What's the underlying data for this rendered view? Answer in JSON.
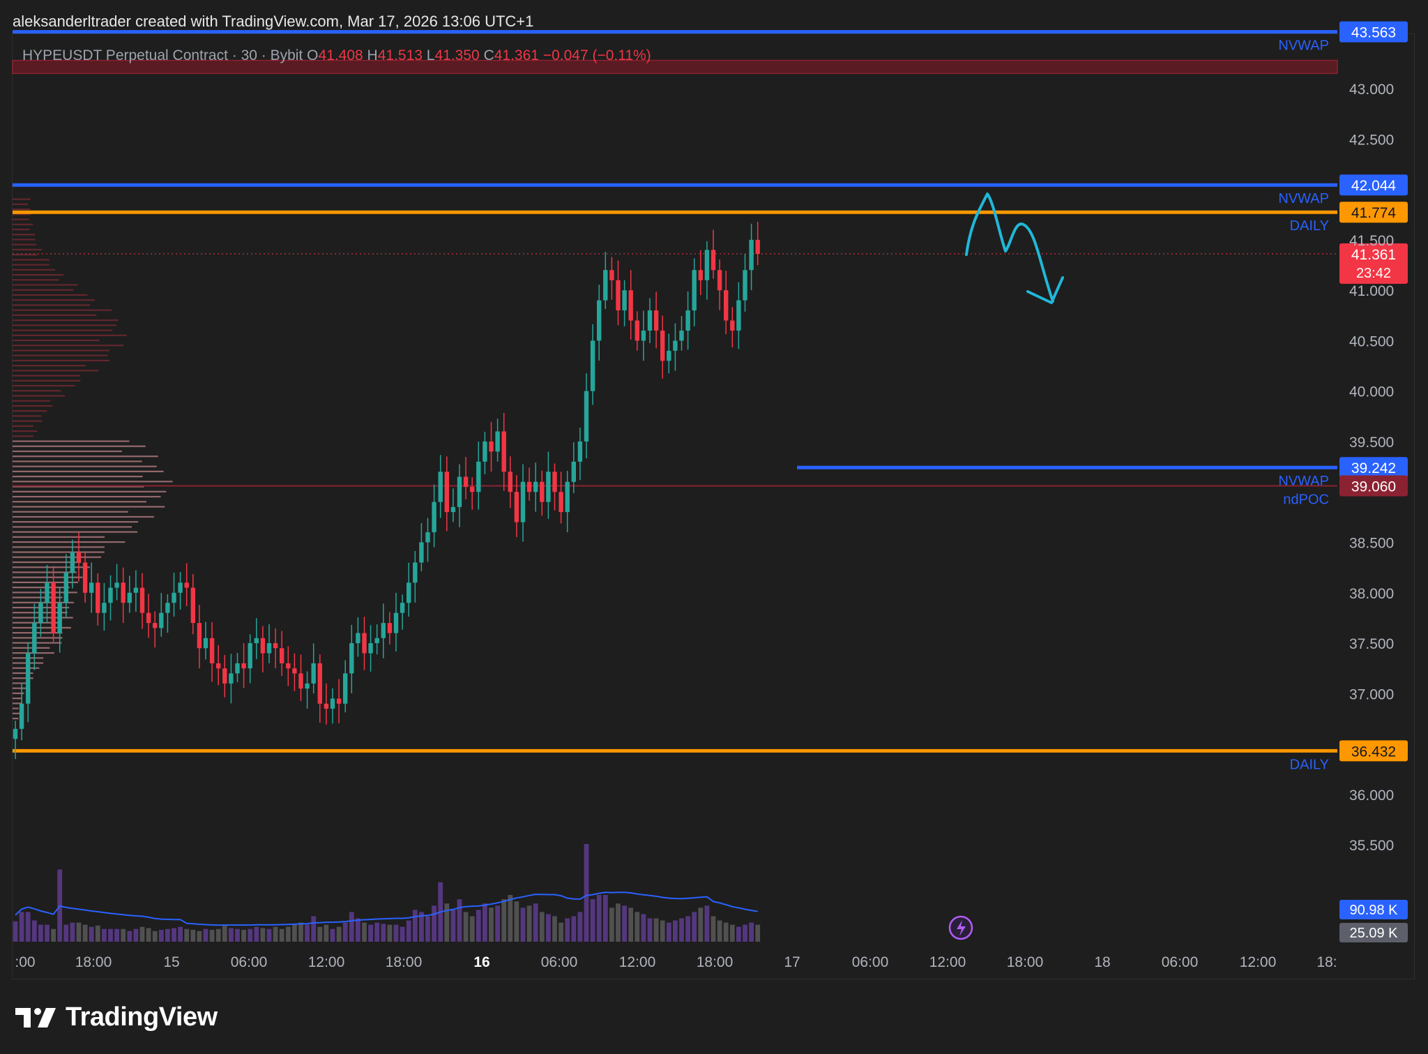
{
  "header": {
    "attribution": "aleksanderltrader created with TradingView.com, Mar 17, 2026 13:06 UTC+1"
  },
  "legend": {
    "symbol": "HYPEUSDT Perpetual Contract · 30 · Bybit",
    "o_label": "O",
    "o_value": "41.408",
    "h_label": "H",
    "h_value": "41.513",
    "l_label": "L",
    "l_value": "41.350",
    "c_label": "C",
    "c_value": "41.361",
    "change": "−0.047 (−0.11%)"
  },
  "brand": {
    "name": "TradingView"
  },
  "colors": {
    "up": "#26a69a",
    "down": "#f23645",
    "nvwap": "#2962ff",
    "daily": "#ff9800",
    "poc": "#8b2232",
    "annotation": "#20b8d8",
    "volume_up": "#5b3a8a",
    "volume_down": "#555555"
  },
  "chart_data": {
    "type": "candlestick",
    "symbol": "HYPEUSDT",
    "timeframe": "30",
    "exchange": "Bybit",
    "ylim": [
      35.0,
      43.9
    ],
    "y_ticks": [
      "43.000",
      "42.500",
      "41.500",
      "41.000",
      "40.500",
      "40.000",
      "39.500",
      "38.500",
      "38.000",
      "37.500",
      "37.000",
      "36.000",
      "35.500"
    ],
    "x_ticks": [
      ":00",
      "18:00",
      "15",
      "06:00",
      "12:00",
      "18:00",
      "16",
      "06:00",
      "12:00",
      "18:00",
      "17",
      "06:00",
      "12:00",
      "18:00",
      "18",
      "06:00",
      "12:00",
      "18:"
    ],
    "bold_x_ticks": [
      "16"
    ],
    "levels": [
      {
        "label": "NVWAP",
        "price": "43.563",
        "color": "#2962ff"
      },
      {
        "label": "NVWAP",
        "price": "42.044",
        "color": "#2962ff"
      },
      {
        "label": "DAILY",
        "price": "41.774",
        "color": "#ff9800"
      },
      {
        "label": "NVWAP",
        "price": "39.242",
        "color": "#2962ff"
      },
      {
        "label": "ndPOC",
        "price": "39.060",
        "color": "#8b2232"
      },
      {
        "label": "DAILY",
        "price": "36.432",
        "color": "#ff9800"
      }
    ],
    "resistance_zone": [
      43.15,
      43.28
    ],
    "current_price": {
      "value": "41.361",
      "countdown": "23:42"
    },
    "volume": {
      "ma_label": "90.98 K",
      "last_label": "25.09 K"
    },
    "closes": [
      36.65,
      36.9,
      37.4,
      37.7,
      37.9,
      38.1,
      37.6,
      37.9,
      38.2,
      38.4,
      38.3,
      38.0,
      38.1,
      37.8,
      37.9,
      38.05,
      38.1,
      37.9,
      38.0,
      38.05,
      37.8,
      37.7,
      37.65,
      37.8,
      37.9,
      38.0,
      38.1,
      38.05,
      37.7,
      37.45,
      37.55,
      37.3,
      37.25,
      37.1,
      37.2,
      37.3,
      37.25,
      37.5,
      37.55,
      37.4,
      37.5,
      37.45,
      37.3,
      37.25,
      37.2,
      37.05,
      37.1,
      37.3,
      36.9,
      36.85,
      36.95,
      36.9,
      37.2,
      37.5,
      37.6,
      37.4,
      37.5,
      37.55,
      37.7,
      37.6,
      37.8,
      37.9,
      38.1,
      38.3,
      38.5,
      38.6,
      38.9,
      39.2,
      38.8,
      38.85,
      39.15,
      39.05,
      39.0,
      39.3,
      39.5,
      39.4,
      39.6,
      39.2,
      39.0,
      38.7,
      39.1,
      39.0,
      39.1,
      38.9,
      39.2,
      39.0,
      38.8,
      39.1,
      39.3,
      39.5,
      40.0,
      40.5,
      40.9,
      41.2,
      41.1,
      40.8,
      41.0,
      40.7,
      40.5,
      40.6,
      40.8,
      40.6,
      40.3,
      40.4,
      40.5,
      40.6,
      40.8,
      41.2,
      41.1,
      41.4,
      41.2,
      41.0,
      40.7,
      40.6,
      40.9,
      41.2,
      41.5,
      41.36
    ],
    "volumes": [
      48,
      70,
      70,
      50,
      40,
      40,
      30,
      170,
      40,
      45,
      45,
      40,
      35,
      38,
      30,
      30,
      30,
      30,
      25,
      30,
      35,
      32,
      25,
      28,
      30,
      32,
      35,
      30,
      28,
      25,
      30,
      28,
      30,
      40,
      32,
      30,
      28,
      30,
      35,
      32,
      30,
      35,
      30,
      35,
      40,
      45,
      40,
      60,
      35,
      40,
      30,
      35,
      45,
      70,
      55,
      45,
      40,
      45,
      42,
      40,
      40,
      35,
      50,
      75,
      70,
      60,
      85,
      140,
      90,
      75,
      100,
      70,
      60,
      75,
      90,
      80,
      85,
      100,
      110,
      95,
      80,
      85,
      90,
      70,
      65,
      60,
      45,
      55,
      60,
      70,
      230,
      100,
      110,
      110,
      80,
      90,
      85,
      80,
      70,
      65,
      55,
      55,
      50,
      45,
      50,
      55,
      60,
      70,
      80,
      85,
      60,
      50,
      45,
      40,
      35,
      40,
      45,
      40
    ]
  }
}
